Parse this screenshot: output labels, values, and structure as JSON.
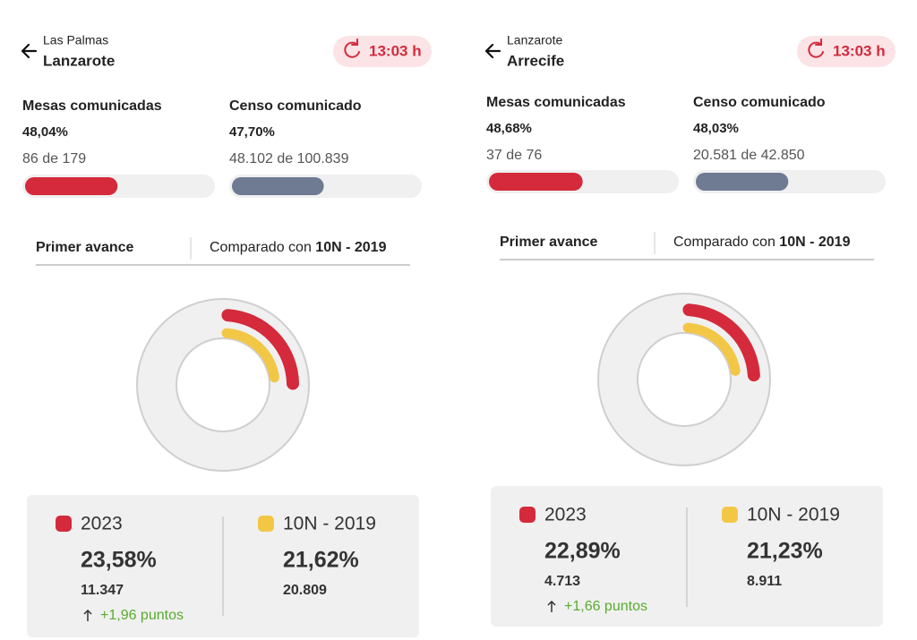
{
  "panels": [
    {
      "header": {
        "region": "Las Palmas",
        "place": "Lanzarote",
        "time": "13:03 h"
      },
      "mesas": {
        "title": "Mesas comunicadas",
        "percent": {
          "value": 48.04,
          "label": "48,04%"
        },
        "count": "86 de 179"
      },
      "censo": {
        "title": "Censo comunicado",
        "percent": {
          "value": 47.7,
          "label": "47,70%"
        },
        "count": "48.102 de 100.839"
      },
      "tabs": {
        "active": "Primer avance",
        "compare_prefix": "Comparado con",
        "compare_bold": "10N - 2019"
      },
      "legend": [
        {
          "name": "2023",
          "color": "#d42a3c",
          "percent": {
            "value": 23.58,
            "label": "23,58%"
          },
          "votes": "11.347",
          "change": "+1,96 puntos"
        },
        {
          "name": "10N - 2019",
          "color": "#f3c746",
          "percent": {
            "value": 21.62,
            "label": "21,62%"
          },
          "votes": "20.809"
        }
      ]
    },
    {
      "header": {
        "region": "Lanzarote",
        "place": "Arrecife",
        "time": "13:03 h"
      },
      "mesas": {
        "title": "Mesas comunicadas",
        "percent": {
          "value": 48.68,
          "label": "48,68%"
        },
        "count": "37 de 76"
      },
      "censo": {
        "title": "Censo comunicado",
        "percent": {
          "value": 48.03,
          "label": "48,03%"
        },
        "count": "20.581 de 42.850"
      },
      "tabs": {
        "active": "Primer avance",
        "compare_prefix": "Comparado con",
        "compare_bold": "10N - 2019"
      },
      "legend": [
        {
          "name": "2023",
          "color": "#d42a3c",
          "percent": {
            "value": 22.89,
            "label": "22,89%"
          },
          "votes": "4.713",
          "change": "+1,66 puntos"
        },
        {
          "name": "10N - 2019",
          "color": "#f3c746",
          "percent": {
            "value": 21.23,
            "label": "21,23%"
          },
          "votes": "8.911"
        }
      ]
    }
  ]
}
